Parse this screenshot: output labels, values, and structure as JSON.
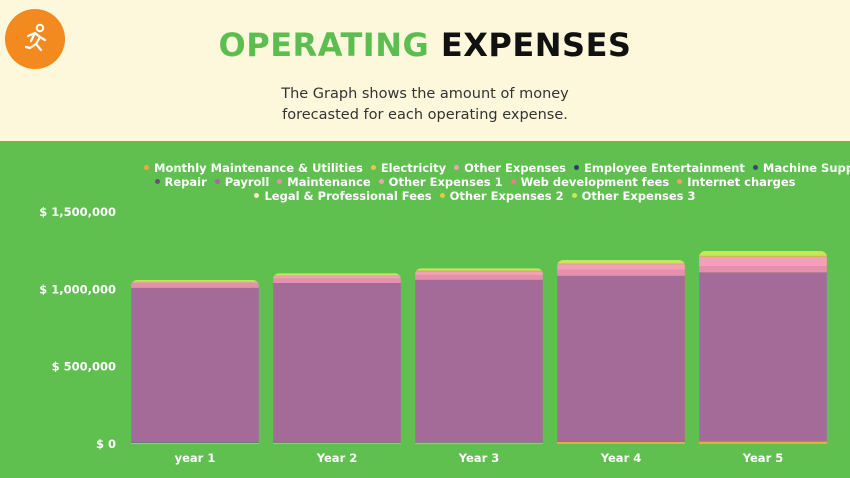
{
  "header": {
    "title_part1": "OPERATING",
    "title_part2": "EXPENSES",
    "subtitle_line1": "The Graph shows the amount of money",
    "subtitle_line2": "forecasted for each operating expense.",
    "logo_icon": "running-person-icon"
  },
  "colors": {
    "panel": "#5fbf4f",
    "title_accent": "#5cbd50",
    "logo": "#f28a1f"
  },
  "chart_data": {
    "type": "bar",
    "stacked": true,
    "categories": [
      "year 1",
      "Year 2",
      "Year 3",
      "Year 4",
      "Year 5"
    ],
    "ylim": [
      0,
      1500000
    ],
    "yticks": [
      0,
      500000,
      1000000,
      1500000
    ],
    "ytick_labels": [
      "$ 0",
      "$ 500,000",
      "$ 1,000,000",
      "$ 1,500,000"
    ],
    "grid": false,
    "legend_position": "top",
    "series": [
      {
        "name": "Monthly Maintenance & Utilities",
        "color": "#f4a63a",
        "values": [
          4000,
          5000,
          6000,
          12000,
          14000
        ]
      },
      {
        "name": "Electricity",
        "color": "#f2c24b",
        "values": [
          2000,
          2000,
          2000,
          2000,
          2000
        ]
      },
      {
        "name": "Other Expenses",
        "color": "#f3a0b5",
        "values": [
          1000,
          1000,
          1000,
          1000,
          1000
        ]
      },
      {
        "name": "Employee Entertainment",
        "color": "#2a3d6b",
        "values": [
          1000,
          1000,
          1000,
          1000,
          1000
        ]
      },
      {
        "name": "Machine Supplies",
        "color": "#2e4a7d",
        "values": [
          1000,
          1000,
          1000,
          1000,
          1000
        ]
      },
      {
        "name": "Repair",
        "color": "#6b4c7a",
        "values": [
          1000,
          1000,
          1000,
          1000,
          1000
        ]
      },
      {
        "name": "Payroll",
        "color": "#a46b98",
        "values": [
          1000000,
          1030000,
          1050000,
          1070000,
          1090000
        ]
      },
      {
        "name": "Maintenance",
        "color": "#e88fb0",
        "values": [
          30000,
          30000,
          30000,
          40000,
          40000
        ]
      },
      {
        "name": "Other Expenses 1",
        "color": "#f4a0b8",
        "values": [
          5000,
          15000,
          25000,
          35000,
          60000
        ]
      },
      {
        "name": "Web development fees",
        "color": "#f07a8c",
        "values": [
          1000,
          1000,
          1000,
          1000,
          1000
        ]
      },
      {
        "name": "Internet charges",
        "color": "#f5a063",
        "values": [
          1000,
          1000,
          1000,
          1000,
          1000
        ]
      },
      {
        "name": "Legal & Professional Fees",
        "color": "#fbe9c5",
        "values": [
          1000,
          1000,
          1000,
          1000,
          1000
        ]
      },
      {
        "name": "Other Expenses 2",
        "color": "#e8c93a",
        "values": [
          2000,
          3000,
          3000,
          4000,
          5000
        ]
      },
      {
        "name": "Other Expenses 3",
        "color": "#c9e65a",
        "values": [
          10000,
          12000,
          13000,
          20000,
          30000
        ]
      }
    ]
  }
}
